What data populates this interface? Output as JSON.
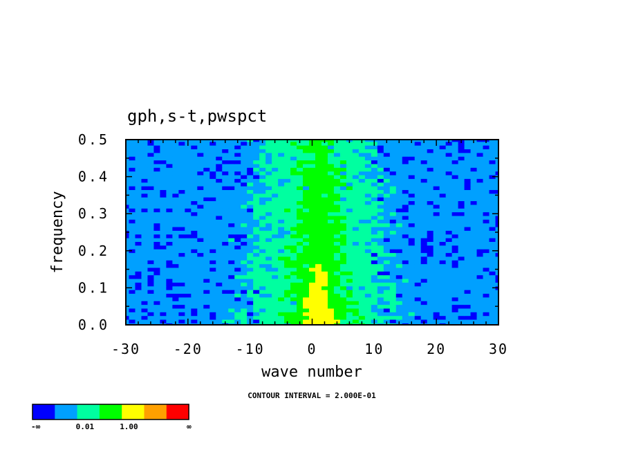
{
  "chart_data": {
    "type": "heatmap",
    "title": "gph,s-t,pwspct",
    "xlabel": "wave number",
    "ylabel": "frequency",
    "xlim": [
      -30,
      30
    ],
    "ylim": [
      0.0,
      0.5
    ],
    "x_ticks": [
      "-30",
      "-20",
      "-10",
      "0",
      "10",
      "20",
      "30"
    ],
    "y_ticks": [
      "0.0",
      "0.1",
      "0.2",
      "0.3",
      "0.4",
      "0.5"
    ],
    "note": "CONTOUR INTERVAL = 2.000E-01",
    "colorbar": {
      "colors": [
        "#0000ff",
        "#00a0ff",
        "#00ffa0",
        "#00ff00",
        "#ffff00",
        "#ffa000",
        "#ff0000"
      ],
      "labels": [
        "-∞",
        "0.01",
        "1.00",
        "∞"
      ]
    },
    "structure": {
      "background_level": 1,
      "ridge_center_wave": 1,
      "ridge_levels": [
        {
          "level": 2,
          "half_width_at_low_freq": 12,
          "half_width_at_high_freq": 8
        },
        {
          "level": 3,
          "half_width_at_low_freq": 5,
          "half_width_at_high_freq": 2
        },
        {
          "level": 4,
          "half_width_at_low_freq": 2,
          "max_frequency": 0.17
        }
      ]
    }
  }
}
